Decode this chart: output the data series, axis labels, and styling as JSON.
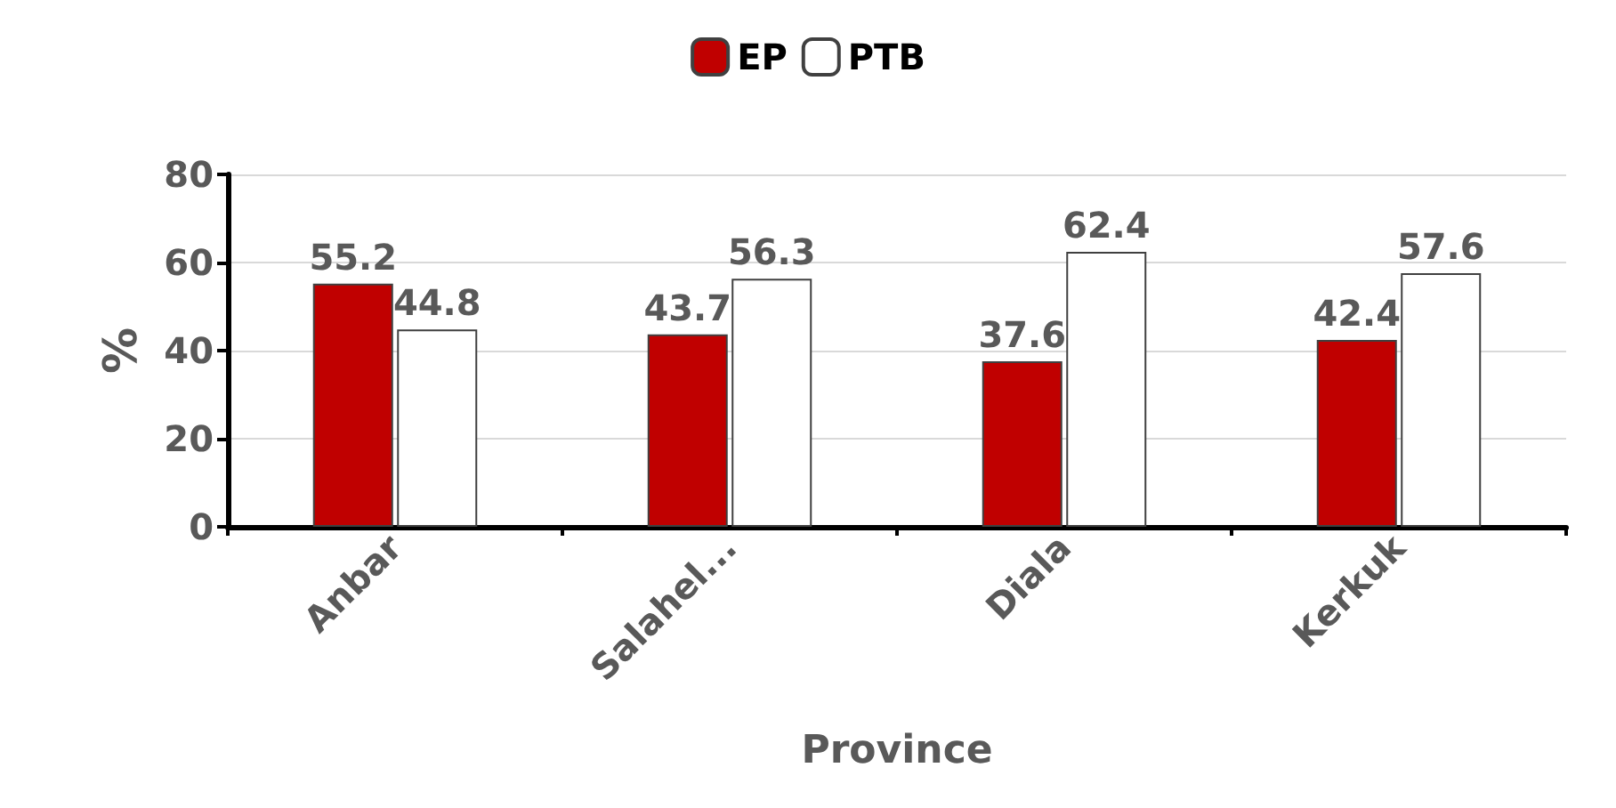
{
  "chart_data": {
    "type": "bar",
    "xlabel": "Province",
    "ylabel": "%",
    "categories": [
      "Anbar",
      "Salahel...",
      "Diala",
      "Kerkuk"
    ],
    "series": [
      {
        "name": "EP",
        "color": "#c00000",
        "values": [
          55.2,
          43.7,
          37.6,
          42.4
        ]
      },
      {
        "name": "PTB",
        "color": "#ffffff",
        "values": [
          44.8,
          56.3,
          62.4,
          57.6
        ]
      }
    ],
    "ylim": [
      0,
      80
    ],
    "yticks": [
      0,
      20,
      40,
      60,
      80
    ],
    "grid": "y",
    "legend": "top",
    "data_labels": true
  }
}
